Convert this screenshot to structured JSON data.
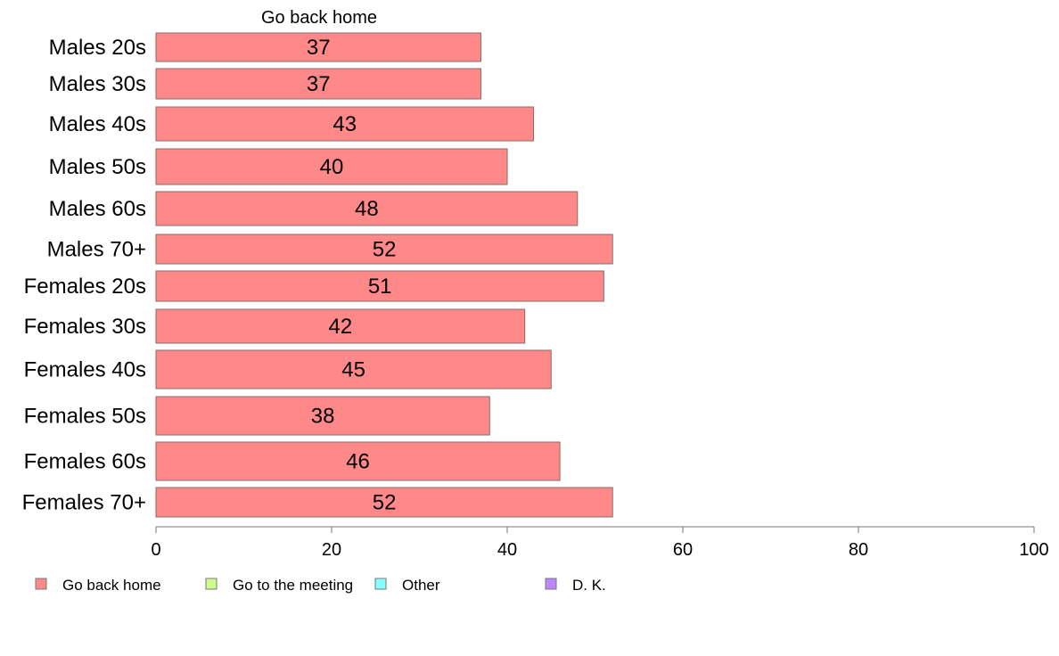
{
  "chart_data": {
    "type": "bar",
    "orientation": "horizontal",
    "stacked": true,
    "categories": [
      "Males 20s",
      "Males 30s",
      "Males 40s",
      "Males 50s",
      "Males 60s",
      "Males 70+",
      "Females 20s",
      "Females 30s",
      "Females 40s",
      "Females 50s",
      "Females 60s",
      "Females 70+"
    ],
    "series": [
      {
        "name": "Go back home",
        "color": "#ff8888",
        "values": [
          37,
          37,
          43,
          40,
          48,
          52,
          51,
          42,
          45,
          38,
          46,
          52
        ]
      }
    ],
    "segment_header": "Go back home",
    "legend": [
      {
        "label": "Go back home",
        "color": "#ff8888"
      },
      {
        "label": "Go to the meeting",
        "color": "#ccff88"
      },
      {
        "label": "Other",
        "color": "#88ffff"
      },
      {
        "label": "D. K.",
        "color": "#bb88ff"
      }
    ],
    "xlim": [
      0,
      100
    ],
    "xticks": [
      0,
      20,
      40,
      60,
      80,
      100
    ],
    "legend_position": "bottom-left",
    "grid": false
  }
}
